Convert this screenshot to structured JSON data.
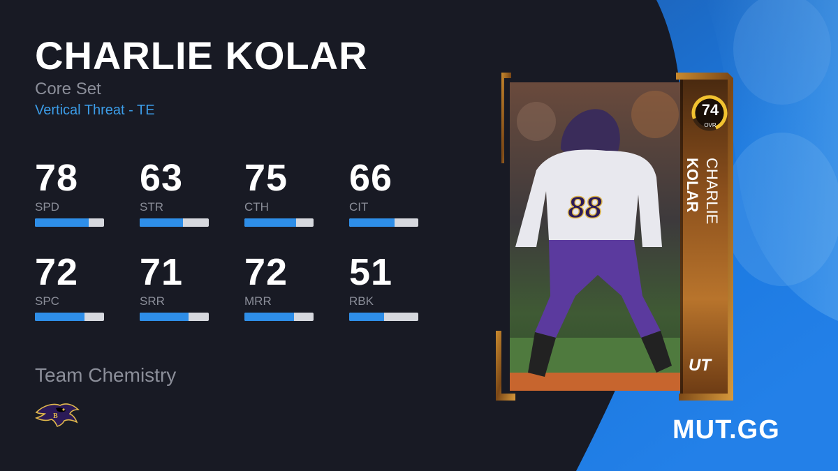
{
  "player": {
    "name": "CHARLIE KOLAR",
    "first_name": "CHARLIE",
    "last_name": "KOLAR",
    "set": "Core Set",
    "archetype": "Vertical Threat - TE",
    "overall": "74",
    "overall_label": "OVR",
    "program_badge": "UT",
    "jersey_number": "88"
  },
  "stats": [
    {
      "value": "78",
      "label": "SPD",
      "rating": 78
    },
    {
      "value": "63",
      "label": "STR",
      "rating": 63
    },
    {
      "value": "75",
      "label": "CTH",
      "rating": 75
    },
    {
      "value": "66",
      "label": "CIT",
      "rating": 66
    },
    {
      "value": "72",
      "label": "SPC",
      "rating": 72
    },
    {
      "value": "71",
      "label": "SRR",
      "rating": 71
    },
    {
      "value": "72",
      "label": "MRR",
      "rating": 72
    },
    {
      "value": "51",
      "label": "RBK",
      "rating": 51
    }
  ],
  "team_chemistry": {
    "label": "Team Chemistry",
    "team_logo_icon": "ravens-logo-icon"
  },
  "site_logo": "MUT.GG",
  "colors": {
    "background": "#181a24",
    "accent_blue": "#2e8ee8",
    "card_bronze": "#8a4f1c",
    "gold": "#e0a820"
  }
}
